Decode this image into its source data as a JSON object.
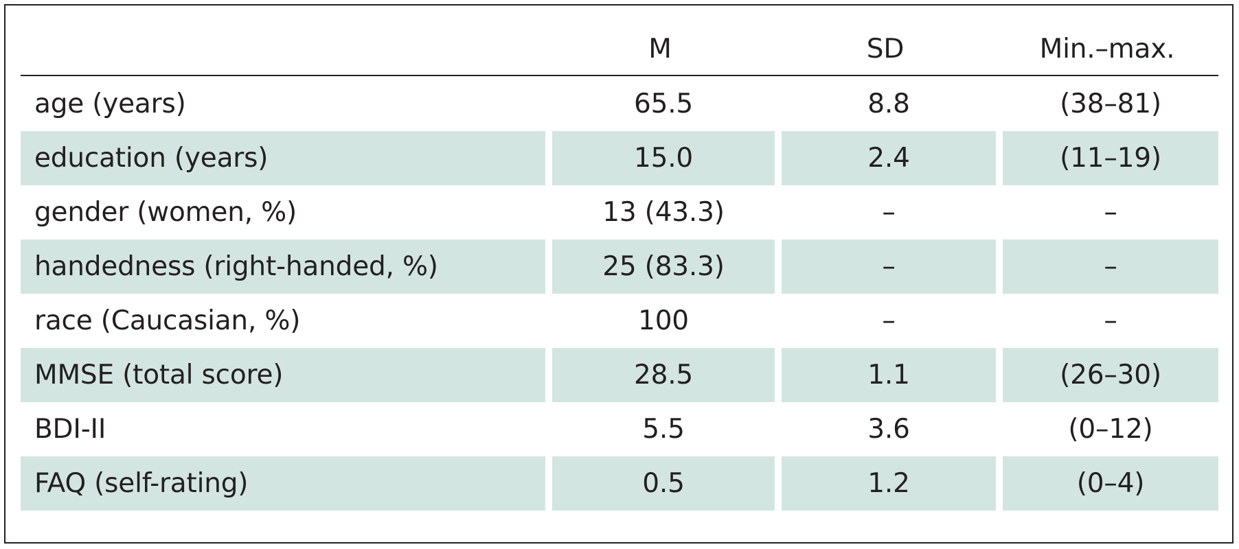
{
  "table": {
    "headers": [
      "",
      "M",
      "SD",
      "Min.–max."
    ],
    "rows": [
      {
        "label": "age (years)",
        "m": "65.5",
        "sd": "8.8",
        "range": "(38–81)"
      },
      {
        "label": "education (years)",
        "m": "15.0",
        "sd": "2.4",
        "range": "(11–19)"
      },
      {
        "label": "gender (women, %)",
        "m": "13 (43.3)",
        "sd": "–",
        "range": "–"
      },
      {
        "label": "handedness (right-handed, %)",
        "m": "25 (83.3)",
        "sd": "–",
        "range": "–"
      },
      {
        "label": "race (Caucasian, %)",
        "m": "100",
        "sd": "–",
        "range": "–"
      },
      {
        "label": "MMSE (total score)",
        "m": "28.5",
        "sd": "1.1",
        "range": "(26–30)"
      },
      {
        "label": "BDI-II",
        "m": "5.5",
        "sd": "3.6",
        "range": "(0–12)"
      },
      {
        "label": "FAQ (self-rating)",
        "m": "0.5",
        "sd": "1.2",
        "range": "(0–4)"
      }
    ]
  },
  "colors": {
    "shaded_row": "#d3e5e0",
    "text": "#231f20",
    "rule": "#231f20"
  }
}
